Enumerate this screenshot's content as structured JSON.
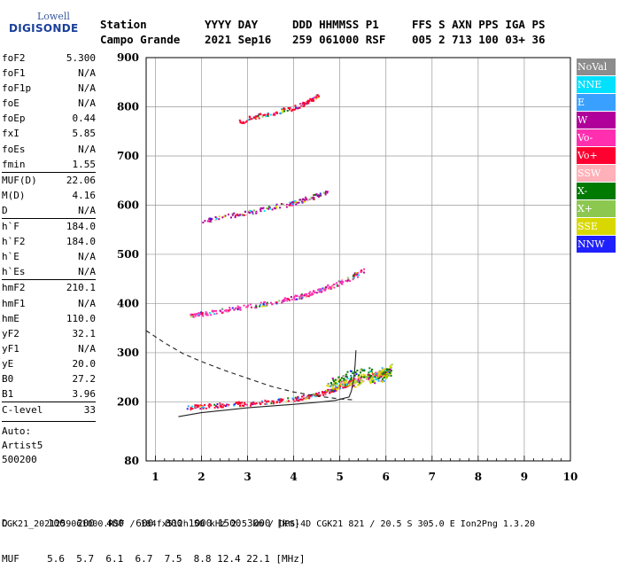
{
  "logo": {
    "line1": "Lowell",
    "line2": "DIGISONDE"
  },
  "header": {
    "labels": [
      "Station",
      "YYYY DAY",
      "DDD HHMMSS P1",
      "FFS S AXN PPS IGA PS"
    ],
    "values": [
      "Campo Grande",
      "2021 Sep16",
      "259 061000 RSF",
      "005 2 713 100 03+ 36"
    ]
  },
  "params": [
    {
      "name": "foF2",
      "value": "5.300"
    },
    {
      "name": "foF1",
      "value": "N/A"
    },
    {
      "name": "foF1p",
      "value": "N/A"
    },
    {
      "name": "foE",
      "value": "N/A"
    },
    {
      "name": "foEp",
      "value": "0.44"
    },
    {
      "name": "fxI",
      "value": "5.85"
    },
    {
      "name": "foEs",
      "value": "N/A"
    },
    {
      "name": "fmin",
      "value": "1.55"
    },
    {
      "name": "MUF(D)",
      "value": "22.06"
    },
    {
      "name": "M(D)",
      "value": "4.16"
    },
    {
      "name": "D",
      "value": "N/A"
    },
    {
      "name": "h`F",
      "value": "184.0"
    },
    {
      "name": "h`F2",
      "value": "184.0"
    },
    {
      "name": "h`E",
      "value": "N/A"
    },
    {
      "name": "h`Es",
      "value": "N/A"
    },
    {
      "name": "hmF2",
      "value": "210.1"
    },
    {
      "name": "hmF1",
      "value": "N/A"
    },
    {
      "name": "hmE",
      "value": "110.0"
    },
    {
      "name": "yF2",
      "value": "32.1"
    },
    {
      "name": "yF1",
      "value": "N/A"
    },
    {
      "name": "yE",
      "value": "20.0"
    },
    {
      "name": "B0",
      "value": "27.2"
    },
    {
      "name": "B1",
      "value": "3.96"
    },
    {
      "name": "C-level",
      "value": "33"
    }
  ],
  "autoscaling": [
    "Auto:",
    "Artist5",
    "500200"
  ],
  "legend": [
    {
      "label": "NoVal",
      "color": "#8c8c8c"
    },
    {
      "label": "NNE",
      "color": "#00e0ff"
    },
    {
      "label": "E",
      "color": "#3aa0ff"
    },
    {
      "label": "W",
      "color": "#b0009a"
    },
    {
      "label": "Vo-",
      "color": "#ff2fb0"
    },
    {
      "label": "Vo+",
      "color": "#ff0030"
    },
    {
      "label": "SSW",
      "color": "#ffb0b8"
    },
    {
      "label": "X-",
      "color": "#007a00"
    },
    {
      "label": "X+",
      "color": "#8cc850"
    },
    {
      "label": "SSE",
      "color": "#d8d800"
    },
    {
      "label": "NNW",
      "color": "#2020ff"
    }
  ],
  "chart_data": {
    "type": "scatter",
    "xlim": [
      0.8,
      10
    ],
    "ylim": [
      80,
      900
    ],
    "xticks": [
      1,
      2,
      3,
      4,
      5,
      6,
      7,
      8,
      9,
      10
    ],
    "yticks": [
      80,
      200,
      300,
      400,
      500,
      600,
      700,
      800,
      900
    ],
    "grid": true,
    "traces": [
      {
        "color": "#ff0030",
        "points": [
          [
            1.7,
            190
          ],
          [
            2.0,
            192
          ],
          [
            2.5,
            195
          ],
          [
            3.0,
            198
          ],
          [
            3.5,
            202
          ],
          [
            4.0,
            208
          ],
          [
            4.3,
            212
          ],
          [
            4.6,
            218
          ],
          [
            4.8,
            224
          ],
          [
            5.0,
            232
          ],
          [
            5.2,
            240
          ],
          [
            5.5,
            250
          ],
          [
            5.8,
            258
          ],
          [
            6.0,
            264
          ]
        ]
      },
      {
        "color": "#ff2fb0",
        "points": [
          [
            1.7,
            376
          ],
          [
            2.0,
            380
          ],
          [
            2.5,
            388
          ],
          [
            3.0,
            395
          ],
          [
            3.5,
            403
          ],
          [
            4.0,
            413
          ],
          [
            4.3,
            420
          ],
          [
            4.6,
            430
          ],
          [
            4.9,
            440
          ],
          [
            5.2,
            452
          ],
          [
            5.5,
            468
          ]
        ]
      },
      {
        "color": "#b0009a",
        "points": [
          [
            2.0,
            568
          ],
          [
            2.5,
            578
          ],
          [
            3.0,
            586
          ],
          [
            3.5,
            596
          ],
          [
            4.0,
            606
          ],
          [
            4.3,
            614
          ],
          [
            4.7,
            628
          ]
        ]
      },
      {
        "color": "#d8d800",
        "points": [
          [
            4.7,
            230
          ],
          [
            4.9,
            236
          ],
          [
            5.1,
            242
          ],
          [
            5.3,
            240
          ],
          [
            5.5,
            252
          ],
          [
            5.7,
            246
          ],
          [
            5.9,
            262
          ],
          [
            6.0,
            258
          ],
          [
            6.1,
            266
          ]
        ]
      },
      {
        "color": "#007a00",
        "points": [
          [
            4.8,
            240
          ],
          [
            5.2,
            256
          ],
          [
            5.6,
            262
          ],
          [
            5.9,
            250
          ],
          [
            6.1,
            270
          ]
        ]
      },
      {
        "color": "#ff0030",
        "points": [
          [
            2.8,
            770
          ],
          [
            3.2,
            782
          ],
          [
            3.6,
            790
          ],
          [
            4.1,
            802
          ],
          [
            4.3,
            812
          ],
          [
            4.5,
            822
          ]
        ]
      }
    ],
    "curves": [
      {
        "style": "solid",
        "points": [
          [
            1.5,
            170
          ],
          [
            2.0,
            178
          ],
          [
            3.0,
            188
          ],
          [
            4.0,
            195
          ],
          [
            4.5,
            199
          ],
          [
            4.9,
            203
          ],
          [
            5.2,
            210
          ],
          [
            5.25,
            222
          ],
          [
            5.3,
            245
          ],
          [
            5.33,
            275
          ],
          [
            5.35,
            305
          ]
        ]
      },
      {
        "style": "dashed",
        "points": [
          [
            0.8,
            345
          ],
          [
            1.2,
            320
          ],
          [
            1.6,
            298
          ],
          [
            2.0,
            282
          ],
          [
            2.5,
            264
          ],
          [
            3.0,
            248
          ],
          [
            3.5,
            232
          ],
          [
            4.0,
            220
          ],
          [
            4.5,
            212
          ],
          [
            5.0,
            206
          ],
          [
            5.3,
            204
          ]
        ]
      }
    ]
  },
  "bottom_table": {
    "d_label": "D",
    "d_values": [
      "100",
      "200",
      "400",
      "600",
      "800",
      "1000",
      "1500",
      "3000"
    ],
    "d_unit": "[km]",
    "muf_label": "MUF",
    "muf_values": [
      "5.6",
      "5.7",
      "6.1",
      "6.7",
      "7.5",
      "8.8",
      "12.4",
      "22.1"
    ],
    "muf_unit": "[MHz]"
  },
  "footer": "CGK21_2021259061000.RSF / 184fx512h 50 kHz 2.5 km / DPS-4D CGK21 821 / 20.5 S 305.0 E Ion2Png 1.3.20"
}
